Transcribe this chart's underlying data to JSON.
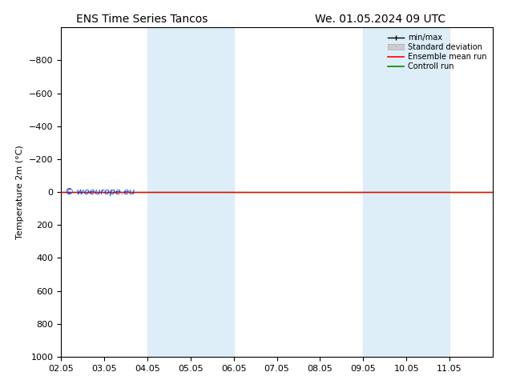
{
  "title_left": "ENS Time Series Tancos",
  "title_right": "We. 01.05.2024 09 UTC",
  "ylabel": "Temperature 2m (°C)",
  "xlim": [
    0,
    10
  ],
  "ylim": [
    -1000,
    1000
  ],
  "yticks": [
    -800,
    -600,
    -400,
    -200,
    0,
    200,
    400,
    600,
    800,
    1000
  ],
  "xtick_labels": [
    "02.05",
    "03.05",
    "04.05",
    "05.05",
    "06.05",
    "07.05",
    "08.05",
    "09.05",
    "10.05",
    "11.05"
  ],
  "xtick_positions": [
    0,
    1,
    2,
    3,
    4,
    5,
    6,
    7,
    8,
    9
  ],
  "blue_bands": [
    [
      2,
      3
    ],
    [
      3,
      4
    ],
    [
      7,
      8
    ],
    [
      8,
      9
    ]
  ],
  "blue_band_color": "#ddeef8",
  "control_run_y": 0,
  "control_run_color": "#008800",
  "ensemble_mean_color": "#ff0000",
  "minmax_color": "#000000",
  "std_dev_color": "#cccccc",
  "watermark": "© woeurope.eu",
  "watermark_color": "#0033cc",
  "legend_labels": [
    "min/max",
    "Standard deviation",
    "Ensemble mean run",
    "Controll run"
  ],
  "legend_line_colors": [
    "#000000",
    "#cccccc",
    "#ff0000",
    "#008800"
  ],
  "background_color": "#ffffff",
  "plot_bg_color": "#ffffff",
  "title_fontsize": 10,
  "tick_fontsize": 8,
  "ylabel_fontsize": 8
}
